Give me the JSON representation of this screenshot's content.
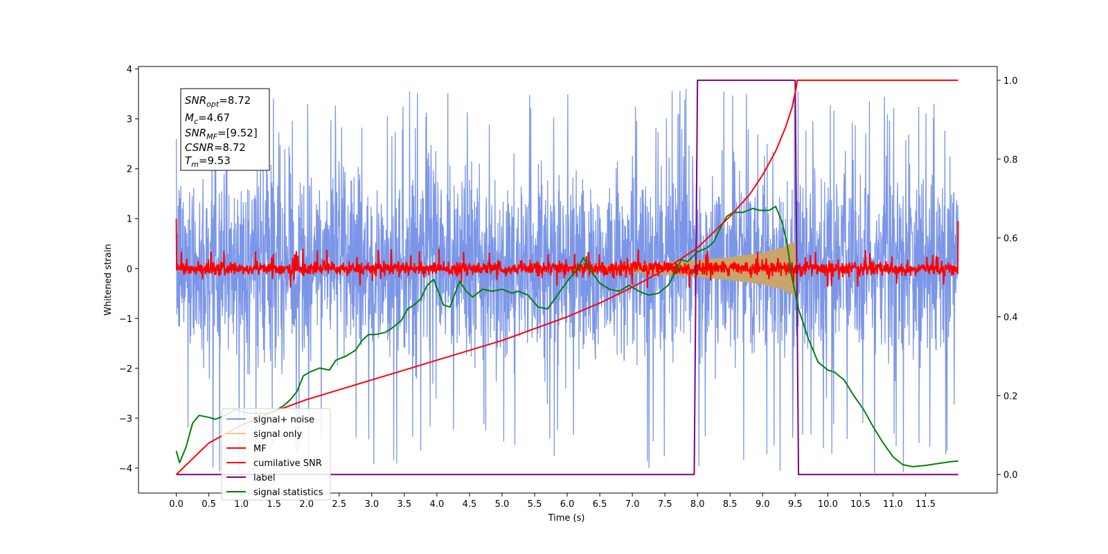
{
  "chart_data": {
    "type": "line",
    "xlabel": "Time (s)",
    "ylabel_left": "Whitened strain",
    "ylabel_right": "",
    "xlim": [
      -0.58,
      12.6
    ],
    "ylim_left": [
      -4.5,
      4.05
    ],
    "ylim_right": [
      -0.047,
      1.035
    ],
    "x_ticks": [
      "0.0",
      "0.5",
      "1.0",
      "1.5",
      "2.0",
      "2.5",
      "3.0",
      "3.5",
      "4.0",
      "4.5",
      "5.0",
      "5.5",
      "6.0",
      "6.5",
      "7.0",
      "7.5",
      "8.0",
      "8.5",
      "9.0",
      "9.5",
      "10.0",
      "10.5",
      "11.0",
      "11.5"
    ],
    "y_ticks_left": [
      "−4",
      "−3",
      "−2",
      "−1",
      "0",
      "1",
      "2",
      "3",
      "4"
    ],
    "y_ticks_right": [
      "0.0",
      "0.2",
      "0.4",
      "0.6",
      "0.8",
      "1.0"
    ],
    "grid": false,
    "legend_position": "lower-left",
    "annotation": {
      "snr_opt": {
        "symbol": "SNR",
        "sub": "opt",
        "value": "=8.72"
      },
      "mc": {
        "symbol": "M",
        "sub": "c",
        "value": "=4.67"
      },
      "snr_mf": {
        "symbol": "SNR",
        "sub": "MF",
        "value": "=[9.52]"
      },
      "csnr": {
        "symbol": "CSNR",
        "sub": "",
        "value": "=8.72"
      },
      "tm": {
        "symbol": "T",
        "sub": "m",
        "value": "=9.53"
      }
    },
    "series": [
      {
        "name": "signal+ noise",
        "axis": "left",
        "color": "#7b96e8",
        "description": "whitened strain noise band",
        "x_range": [
          0.0,
          12.0
        ],
        "typical_range": [
          -1.8,
          2.0
        ],
        "extreme_range": [
          -4.1,
          3.6
        ]
      },
      {
        "name": "signal only",
        "axis": "left",
        "color": "#f5c77e",
        "description": "chirp envelope",
        "envelope_x": [
          6.0,
          6.5,
          7.0,
          7.5,
          8.0,
          8.5,
          9.0,
          9.3,
          9.5,
          9.55
        ],
        "envelope_amp": [
          0.05,
          0.07,
          0.09,
          0.12,
          0.17,
          0.23,
          0.32,
          0.42,
          0.55,
          0.0
        ]
      },
      {
        "name": "MF",
        "axis": "left",
        "color": "#ff0000",
        "description": "matched filter output",
        "x_range": [
          0.0,
          12.0
        ],
        "typical_range": [
          -0.15,
          0.15
        ],
        "edge_values": [
          1.0,
          0.95
        ]
      },
      {
        "name": "cumilative SNR",
        "axis": "right",
        "color": "#ff0000",
        "x": [
          0.0,
          0.5,
          1.0,
          1.5,
          2.0,
          2.5,
          3.0,
          3.5,
          4.0,
          4.5,
          5.0,
          5.5,
          6.0,
          6.5,
          7.0,
          7.5,
          8.0,
          8.5,
          8.8,
          9.0,
          9.2,
          9.35,
          9.45,
          9.52,
          9.53,
          12.0
        ],
        "y": [
          0.0,
          0.08,
          0.125,
          0.16,
          0.19,
          0.215,
          0.24,
          0.265,
          0.29,
          0.315,
          0.34,
          0.37,
          0.4,
          0.435,
          0.475,
          0.52,
          0.575,
          0.655,
          0.71,
          0.76,
          0.82,
          0.88,
          0.93,
          0.985,
          1.0,
          1.0
        ]
      },
      {
        "name": "label",
        "axis": "right",
        "color": "#800080",
        "x": [
          0.0,
          7.95,
          8.0,
          9.5,
          9.55,
          12.0
        ],
        "y": [
          0.0,
          0.0,
          1.0,
          1.0,
          0.0,
          0.0
        ]
      },
      {
        "name": "signal statistics",
        "axis": "right",
        "color": "#008000",
        "x": [
          0.0,
          0.05,
          0.15,
          0.25,
          0.35,
          0.5,
          0.6,
          0.75,
          0.9,
          1.0,
          1.1,
          1.25,
          1.4,
          1.5,
          1.65,
          1.75,
          1.85,
          1.95,
          2.05,
          2.2,
          2.35,
          2.45,
          2.6,
          2.75,
          2.85,
          2.95,
          3.05,
          3.2,
          3.3,
          3.45,
          3.55,
          3.65,
          3.75,
          3.85,
          3.95,
          4.1,
          4.2,
          4.35,
          4.45,
          4.55,
          4.7,
          4.85,
          5.0,
          5.15,
          5.25,
          5.4,
          5.55,
          5.7,
          5.85,
          6.0,
          6.15,
          6.25,
          6.35,
          6.5,
          6.65,
          6.8,
          6.95,
          7.1,
          7.25,
          7.4,
          7.55,
          7.65,
          7.75,
          7.85,
          8.0,
          8.15,
          8.25,
          8.35,
          8.45,
          8.55,
          8.7,
          8.85,
          8.95,
          9.1,
          9.2,
          9.3,
          9.38,
          9.45,
          9.55,
          9.7,
          9.85,
          10.0,
          10.1,
          10.25,
          10.4,
          10.55,
          10.7,
          10.85,
          11.0,
          11.15,
          11.3,
          11.5,
          11.7,
          11.9,
          12.0
        ],
        "y": [
          0.06,
          0.03,
          0.07,
          0.13,
          0.15,
          0.145,
          0.14,
          0.15,
          0.165,
          0.16,
          0.155,
          0.155,
          0.155,
          0.16,
          0.175,
          0.19,
          0.21,
          0.25,
          0.26,
          0.27,
          0.265,
          0.29,
          0.3,
          0.315,
          0.34,
          0.355,
          0.355,
          0.36,
          0.37,
          0.39,
          0.42,
          0.43,
          0.445,
          0.48,
          0.495,
          0.43,
          0.425,
          0.49,
          0.465,
          0.45,
          0.47,
          0.465,
          0.47,
          0.46,
          0.465,
          0.455,
          0.425,
          0.42,
          0.455,
          0.49,
          0.52,
          0.55,
          0.52,
          0.485,
          0.47,
          0.465,
          0.48,
          0.465,
          0.455,
          0.46,
          0.48,
          0.51,
          0.545,
          0.54,
          0.565,
          0.575,
          0.59,
          0.625,
          0.655,
          0.665,
          0.665,
          0.675,
          0.67,
          0.67,
          0.68,
          0.64,
          0.58,
          0.5,
          0.42,
          0.345,
          0.285,
          0.265,
          0.26,
          0.24,
          0.2,
          0.165,
          0.12,
          0.08,
          0.045,
          0.025,
          0.02,
          0.023,
          0.028,
          0.033,
          0.034
        ]
      }
    ]
  }
}
